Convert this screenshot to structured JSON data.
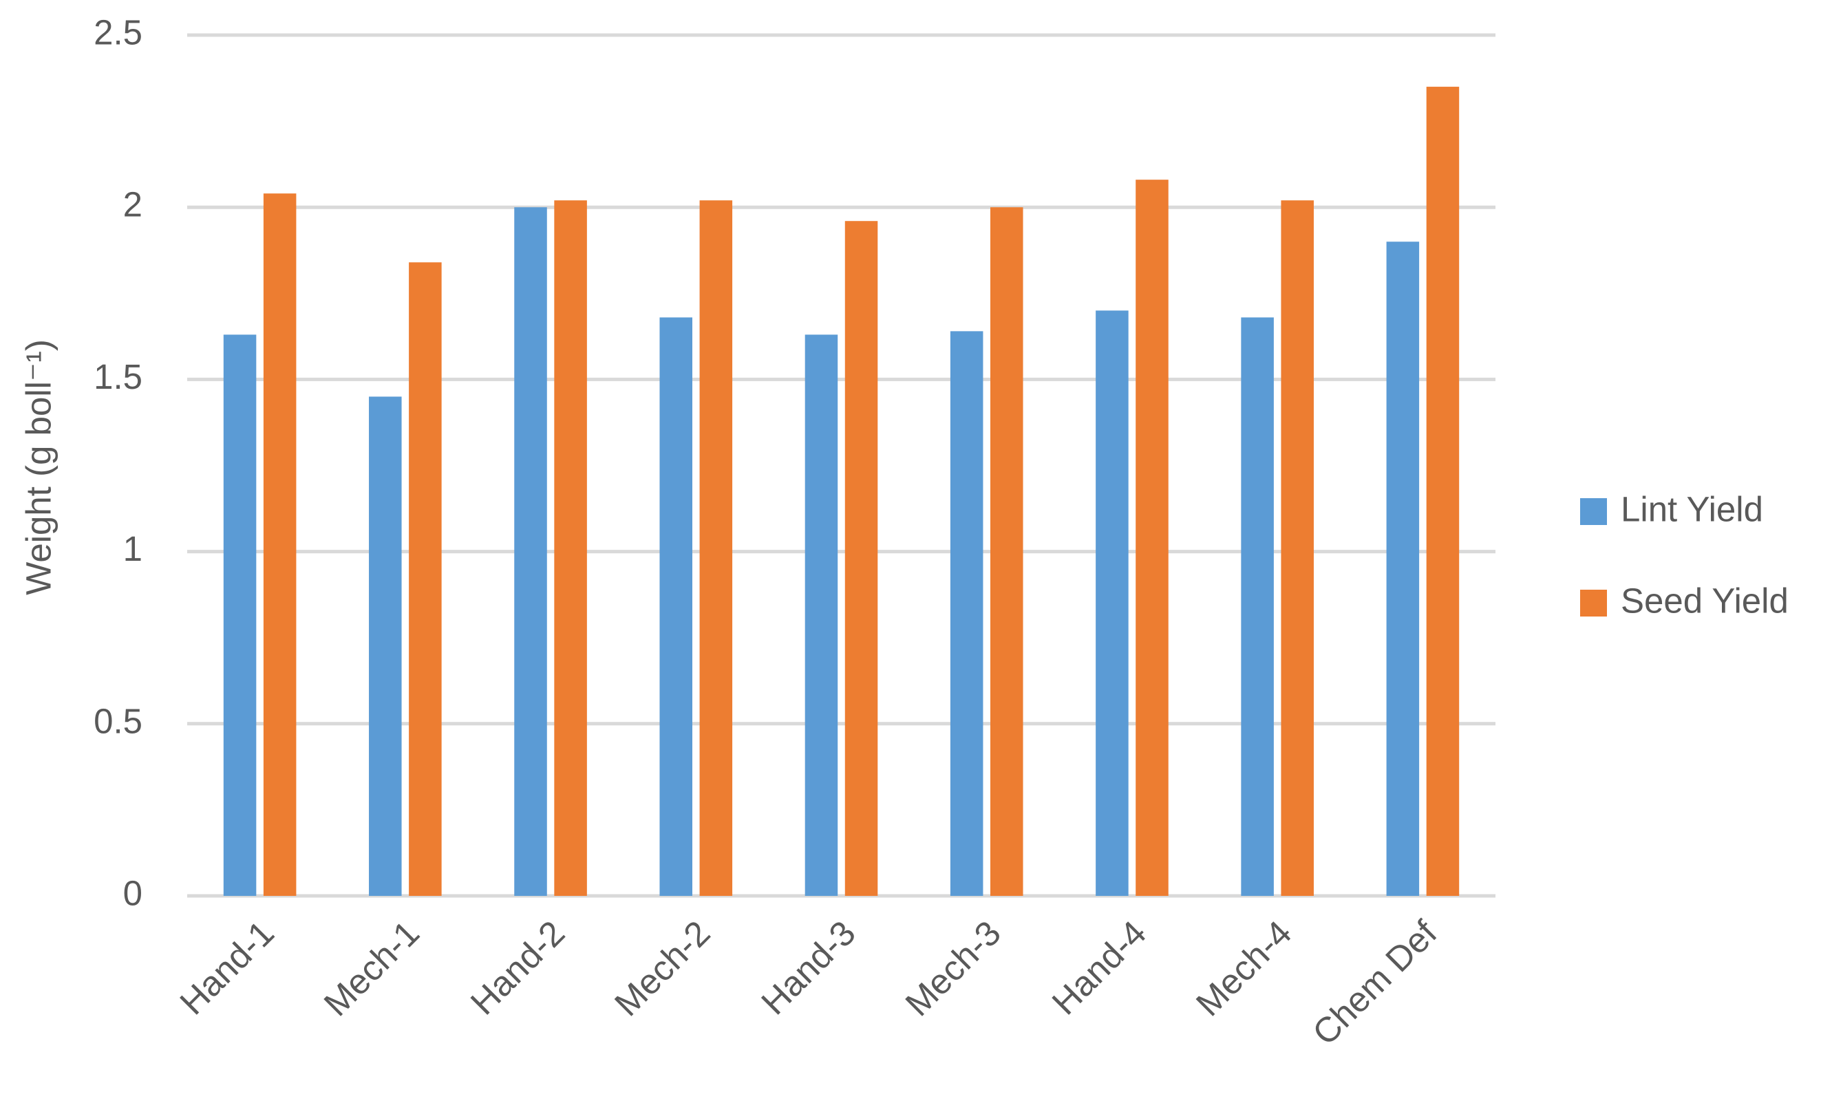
{
  "chart_data": {
    "type": "bar",
    "y_label": "Weight (g boll⁻¹)",
    "categories": [
      "Hand-1",
      "Mech-1",
      "Hand-2",
      "Mech-2",
      "Hand-3",
      "Mech-3",
      "Hand-4",
      "Mech-4",
      "Chem Def"
    ],
    "series": [
      {
        "name": "Lint Yield",
        "color": "#5b9bd5",
        "values": [
          1.63,
          1.45,
          2.0,
          1.68,
          1.63,
          1.64,
          1.7,
          1.68,
          1.9
        ]
      },
      {
        "name": "Seed Yield",
        "color": "#ed7d31",
        "values": [
          2.04,
          1.84,
          2.02,
          2.02,
          1.96,
          2.0,
          2.08,
          2.02,
          2.35
        ]
      }
    ],
    "ylim": [
      0,
      2.5
    ],
    "yticks": [
      0,
      0.5,
      1,
      1.5,
      2,
      2.5
    ],
    "grid": true,
    "legend": "right"
  }
}
